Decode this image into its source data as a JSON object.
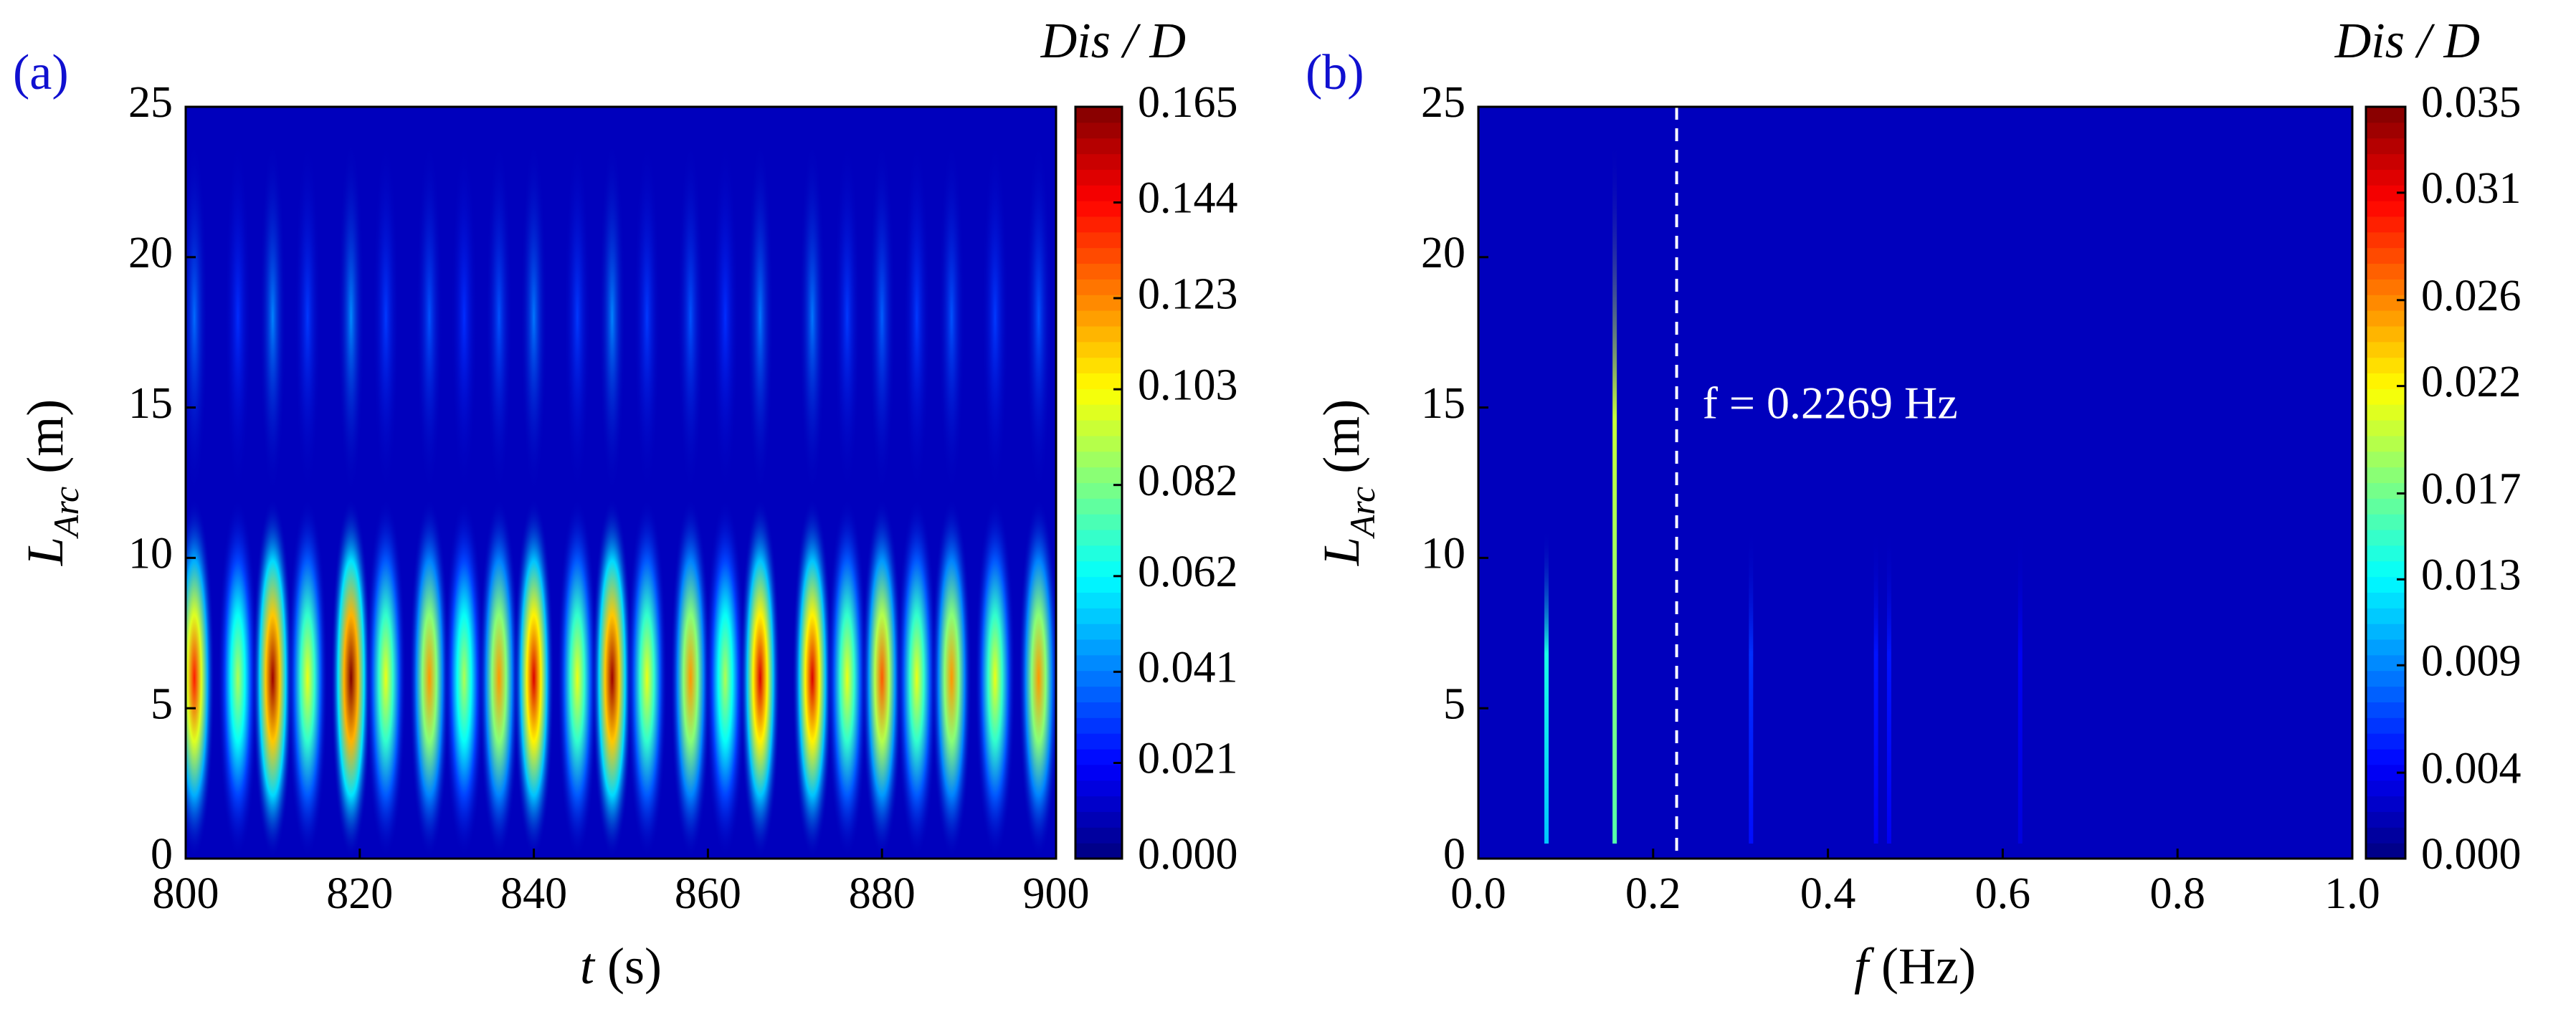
{
  "chart_data": [
    {
      "type": "heatmap",
      "panel_label": "(a)",
      "x_label": "t",
      "x_label_unit": " (s)",
      "y_label": "L",
      "y_label_sub": "Arc",
      "y_label_unit": " (m)",
      "colorbar_title": "Dis / D",
      "xlim": [
        800,
        900
      ],
      "xticks": [
        800,
        820,
        840,
        860,
        880,
        900
      ],
      "ylim": [
        0,
        25
      ],
      "yticks": [
        0,
        5,
        10,
        15,
        20,
        25
      ],
      "zlim": [
        0,
        0.165
      ],
      "zticks": [
        {
          "value": 0,
          "label": "0.000"
        },
        0.021,
        0.041,
        0.062,
        0.082,
        0.103,
        0.123,
        0.144,
        0.165
      ],
      "streaks": {
        "x": [
          801,
          806,
          810,
          814,
          819,
          823,
          828,
          832,
          836,
          840,
          845,
          849,
          853,
          858,
          862,
          866,
          872,
          876,
          880,
          884,
          888,
          893,
          898
        ],
        "values": [
          0.14,
          0.09,
          0.16,
          0.1,
          0.165,
          0.1,
          0.12,
          0.09,
          0.12,
          0.15,
          0.1,
          0.16,
          0.1,
          0.12,
          0.09,
          0.15,
          0.15,
          0.1,
          0.13,
          0.1,
          0.12,
          0.1,
          0.12
        ]
      }
    },
    {
      "type": "spectrum",
      "panel_label": "(b)",
      "x_label": "f",
      "x_label_unit": " (Hz)",
      "y_label": "L",
      "y_label_sub": "Arc",
      "y_label_unit": " (m)",
      "colorbar_title": "Dis / D",
      "xlim": [
        0,
        1
      ],
      "xticks": [
        {
          "value": 0,
          "label": "0.0"
        },
        0.2,
        0.4,
        0.6,
        0.8,
        {
          "value": 1,
          "label": "1.0"
        }
      ],
      "ylim": [
        0,
        25
      ],
      "yticks": [
        0,
        5,
        10,
        15,
        20,
        25
      ],
      "zlim": [
        0,
        0.035
      ],
      "zticks": [
        {
          "value": 0,
          "label": "0.000"
        },
        0.004,
        0.009,
        0.013,
        0.017,
        0.022,
        0.026,
        0.031,
        0.035
      ],
      "reference_line": 0.2269,
      "annotation": "f = 0.2269 Hz",
      "lines": {
        "x": [
          0.078,
          0.156,
          0.312,
          0.455,
          0.47,
          0.62
        ],
        "values": [
          0.014,
          0.02,
          0.006,
          0.005,
          0.005,
          0.004
        ],
        "top": [
          11,
          24,
          11,
          11,
          11,
          11
        ]
      }
    }
  ]
}
